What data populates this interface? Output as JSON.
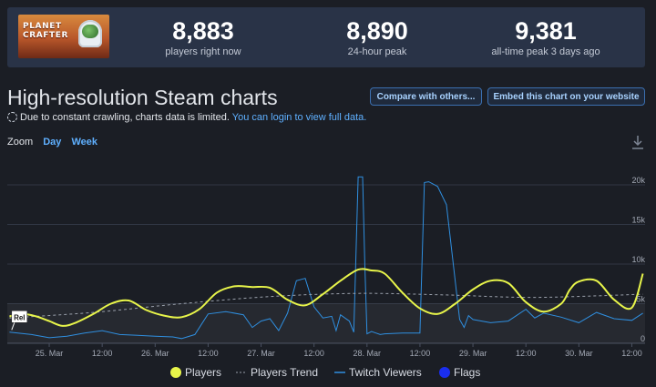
{
  "stats": {
    "logo_text": "PLANET CRAFTER",
    "players_now": {
      "value": "8,883",
      "label": "players right now"
    },
    "peak_24h": {
      "value": "8,890",
      "label": "24-hour peak"
    },
    "peak_all": {
      "value": "9,381",
      "label": "all-time peak 3 days ago"
    }
  },
  "header": {
    "title": "High-resolution Steam charts",
    "compare_label": "Compare with others...",
    "embed_label": "Embed this chart on your website",
    "notice_text": "Due to constant crawling, charts data is limited.",
    "notice_link": "You can login to view full data."
  },
  "zoom": {
    "label": "Zoom",
    "options": [
      "Day",
      "Week"
    ]
  },
  "icons": {
    "download": "download-icon",
    "spinner": "spinner-icon"
  },
  "colors": {
    "players": "#e8f54a",
    "trend": "#9aa0ab",
    "twitch": "#2f8fe0",
    "flags": "#1a2ef0",
    "grid": "#313744",
    "background": "#1b1e25"
  },
  "chart_data": {
    "type": "line",
    "title": "High-resolution Steam charts",
    "x_unit": "hours since 25 Mar 00:00",
    "xlim": [
      -9.5,
      135
    ],
    "ylim": [
      0,
      21500
    ],
    "y_ticks": [
      0,
      5000,
      10000,
      15000,
      20000
    ],
    "y_tick_labels": [
      "0",
      "5k",
      "10k",
      "15k",
      "20k"
    ],
    "x_ticks": [
      {
        "x": 0,
        "label": "25. Mar"
      },
      {
        "x": 12,
        "label": "12:00"
      },
      {
        "x": 24,
        "label": "26. Mar"
      },
      {
        "x": 36,
        "label": "12:00"
      },
      {
        "x": 48,
        "label": "27. Mar"
      },
      {
        "x": 60,
        "label": "12:00"
      },
      {
        "x": 72,
        "label": "28. Mar"
      },
      {
        "x": 84,
        "label": "12:00"
      },
      {
        "x": 96,
        "label": "29. Mar"
      },
      {
        "x": 108,
        "label": "12:00"
      },
      {
        "x": 120,
        "label": "30. Mar"
      },
      {
        "x": 132,
        "label": "12:00"
      }
    ],
    "series": [
      {
        "name": "Players",
        "x": [
          -9,
          -6,
          -3,
          0,
          3,
          6,
          10,
          14,
          18,
          22,
          26,
          30,
          34,
          38,
          42,
          46,
          50,
          54,
          58,
          62,
          66,
          70,
          73,
          76,
          80,
          84,
          88,
          92,
          96,
          100,
          104,
          108,
          112,
          116,
          118,
          120,
          124,
          128,
          132,
          134.5
        ],
        "values": [
          3400,
          3700,
          3400,
          2800,
          2200,
          2600,
          3700,
          5000,
          5400,
          4200,
          3500,
          3300,
          4300,
          6400,
          7200,
          7100,
          7000,
          5500,
          4800,
          6200,
          7900,
          9300,
          9200,
          8800,
          6400,
          4400,
          3700,
          5000,
          6800,
          7900,
          7600,
          5200,
          4000,
          5000,
          6800,
          7800,
          7900,
          5500,
          4500,
          8800
        ]
      },
      {
        "name": "Players Trend",
        "x": [
          -9,
          10,
          30,
          50,
          70,
          90,
          110,
          134.5
        ],
        "values": [
          3200,
          3900,
          5000,
          5900,
          6300,
          6100,
          5800,
          6200
        ]
      },
      {
        "name": "Twitch Viewers",
        "x": [
          -9,
          -4,
          0,
          4,
          8,
          12,
          16,
          20,
          24,
          28,
          30,
          33,
          36,
          40,
          44,
          46,
          48,
          50,
          52,
          54,
          56,
          58,
          60,
          62,
          64,
          65,
          66,
          68,
          69,
          70,
          71,
          71.5,
          72,
          73,
          74,
          75,
          76,
          80,
          84,
          85,
          86,
          87,
          88,
          90,
          93,
          94,
          95,
          96,
          100,
          104,
          108,
          110,
          112,
          116,
          120,
          124,
          128,
          132,
          134.5
        ],
        "values": [
          1400,
          1100,
          700,
          900,
          1300,
          1600,
          1100,
          1000,
          900,
          800,
          600,
          1100,
          3700,
          4000,
          3600,
          2000,
          2800,
          3100,
          1600,
          3800,
          7900,
          8200,
          4600,
          3200,
          3400,
          1600,
          3600,
          2800,
          1400,
          21000,
          21000,
          10000,
          1200,
          1500,
          1300,
          1100,
          1200,
          1300,
          1300,
          20300,
          20400,
          20100,
          19800,
          17500,
          3000,
          2000,
          3500,
          3000,
          2600,
          2800,
          4300,
          3200,
          3800,
          3300,
          2600,
          3900,
          3100,
          2900,
          3800
        ]
      }
    ],
    "flags": [
      {
        "x": -8.3,
        "label": "Rel"
      }
    ],
    "legend": [
      {
        "name": "Players",
        "marker": "circle"
      },
      {
        "name": "Players Trend",
        "marker": "dashed-line"
      },
      {
        "name": "Twitch Viewers",
        "marker": "line"
      },
      {
        "name": "Flags",
        "marker": "circle"
      }
    ],
    "legend_position": "bottom-center"
  }
}
